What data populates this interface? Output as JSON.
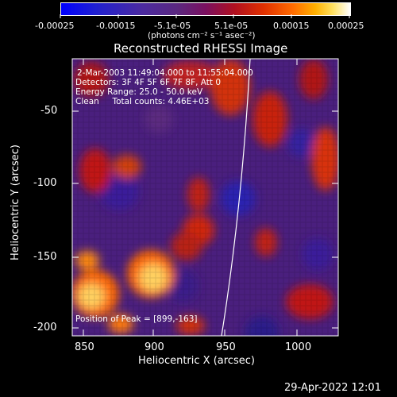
{
  "colorbar": {
    "ticks": [
      "-0.00025",
      "-0.00015",
      "-5.1e-05",
      "5.1e-05",
      "0.00015",
      "0.00025"
    ],
    "units": "(photons cm⁻² s⁻¹ asec⁻²)",
    "range": [
      -0.00025,
      0.00025
    ]
  },
  "plot": {
    "title": "Reconstructed RHESSI Image",
    "xlabel": "Heliocentric X (arcsec)",
    "ylabel": "Heliocentric Y (arcsec)",
    "x_ticks": [
      "850",
      "900",
      "950",
      "1000"
    ],
    "y_ticks": [
      "-50",
      "-100",
      "-150",
      "-200"
    ],
    "xlim": [
      835,
      1025
    ],
    "ylim": [
      -205,
      -18
    ],
    "annotations": [
      "2-Mar-2003 11:49:04.000 to 11:55:04.000",
      "Detectors: 3F 4F 5F 6F 7F 8F, Att 0",
      "Energy Range: 25.0 - 50.0 keV",
      "Clean     Total counts: 4.46E+03"
    ],
    "peak_label": "Position of Peak = [899,-163]"
  },
  "footer": {
    "timestamp": "29-Apr-2022 12:01"
  }
}
